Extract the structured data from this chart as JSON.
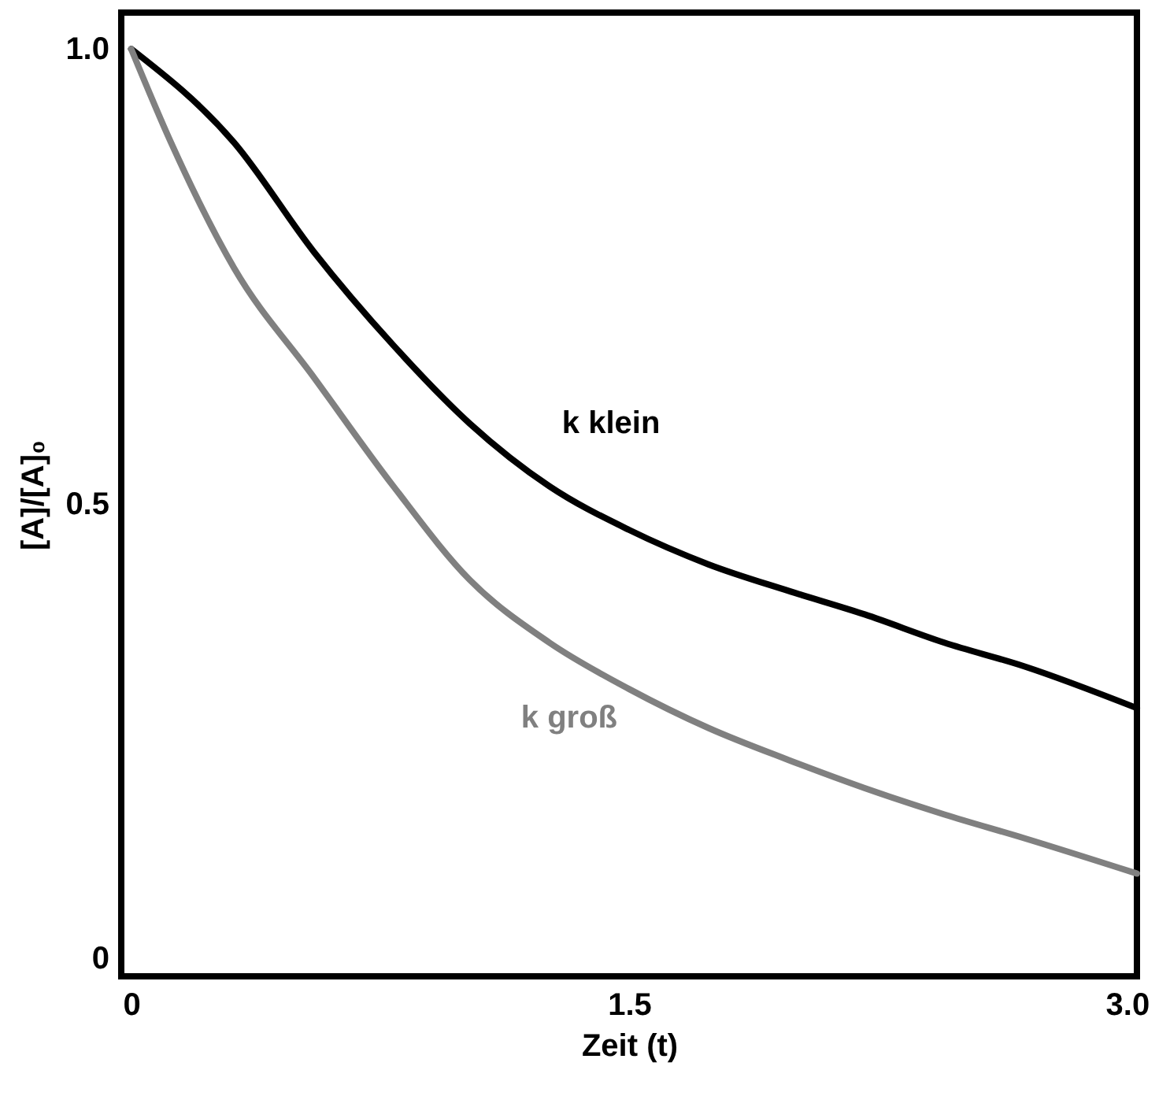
{
  "chart_data": {
    "type": "line",
    "xlabel": "Zeit (t)",
    "ylabel": "[A]/[A]₀",
    "xlim": [
      -0.03,
      3.03
    ],
    "ylim": [
      -0.02,
      1.04
    ],
    "xticks": [
      0,
      1.5,
      {
        "value": 3,
        "label": "3.0"
      }
    ],
    "yticks": [
      0,
      0.5,
      {
        "value": 1,
        "label": "1.0"
      }
    ],
    "grid": false,
    "line_style": "solid",
    "marker": "none",
    "series": [
      {
        "name": "k klein",
        "color": "#000000",
        "x": [
          0,
          0.31,
          0.55,
          0.79,
          1.02,
          1.26,
          1.5,
          1.74,
          1.98,
          2.21,
          2.45,
          2.69,
          3.03
        ],
        "values": [
          1.0,
          0.897,
          0.777,
          0.674,
          0.588,
          0.519,
          0.471,
          0.433,
          0.404,
          0.378,
          0.347,
          0.321,
          0.275
        ]
      },
      {
        "name": "k groß",
        "color": "#808080",
        "x": [
          0,
          0.12,
          0.31,
          0.55,
          0.79,
          1.02,
          1.26,
          1.5,
          1.74,
          1.98,
          2.21,
          2.45,
          2.69,
          3.03
        ],
        "values": [
          1.0,
          0.897,
          0.759,
          0.639,
          0.519,
          0.416,
          0.347,
          0.296,
          0.253,
          0.218,
          0.187,
          0.158,
          0.132,
          0.093
        ]
      }
    ]
  }
}
